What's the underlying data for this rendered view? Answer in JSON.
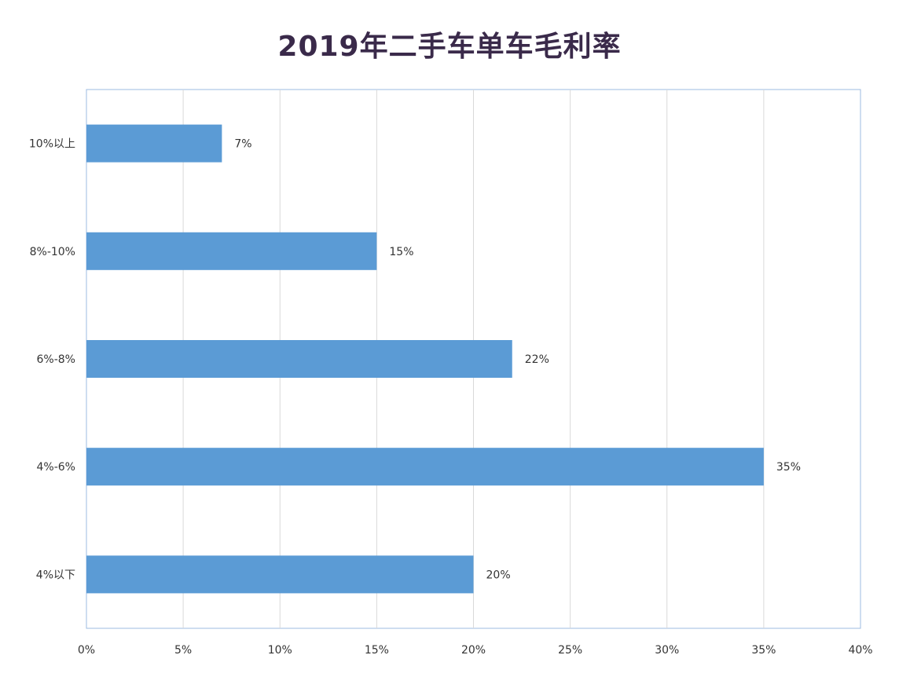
{
  "chart_data": {
    "type": "bar",
    "orientation": "horizontal",
    "title": "2019年二手车单车毛利率",
    "categories": [
      "10%以上",
      "8%-10%",
      "6%-8%",
      "4%-6%",
      "4%以下"
    ],
    "values": [
      7,
      15,
      22,
      35,
      20
    ],
    "data_labels": [
      "7%",
      "15%",
      "22%",
      "35%",
      "20%"
    ],
    "x_ticks": [
      "0%",
      "5%",
      "10%",
      "15%",
      "20%",
      "25%",
      "30%",
      "35%",
      "40%"
    ],
    "xlim": [
      0,
      40
    ],
    "grid": true,
    "legend": "none",
    "bar_color": "#5b9bd5",
    "grid_color": "#d9d9d9",
    "border_color": "#9dbbe0"
  }
}
